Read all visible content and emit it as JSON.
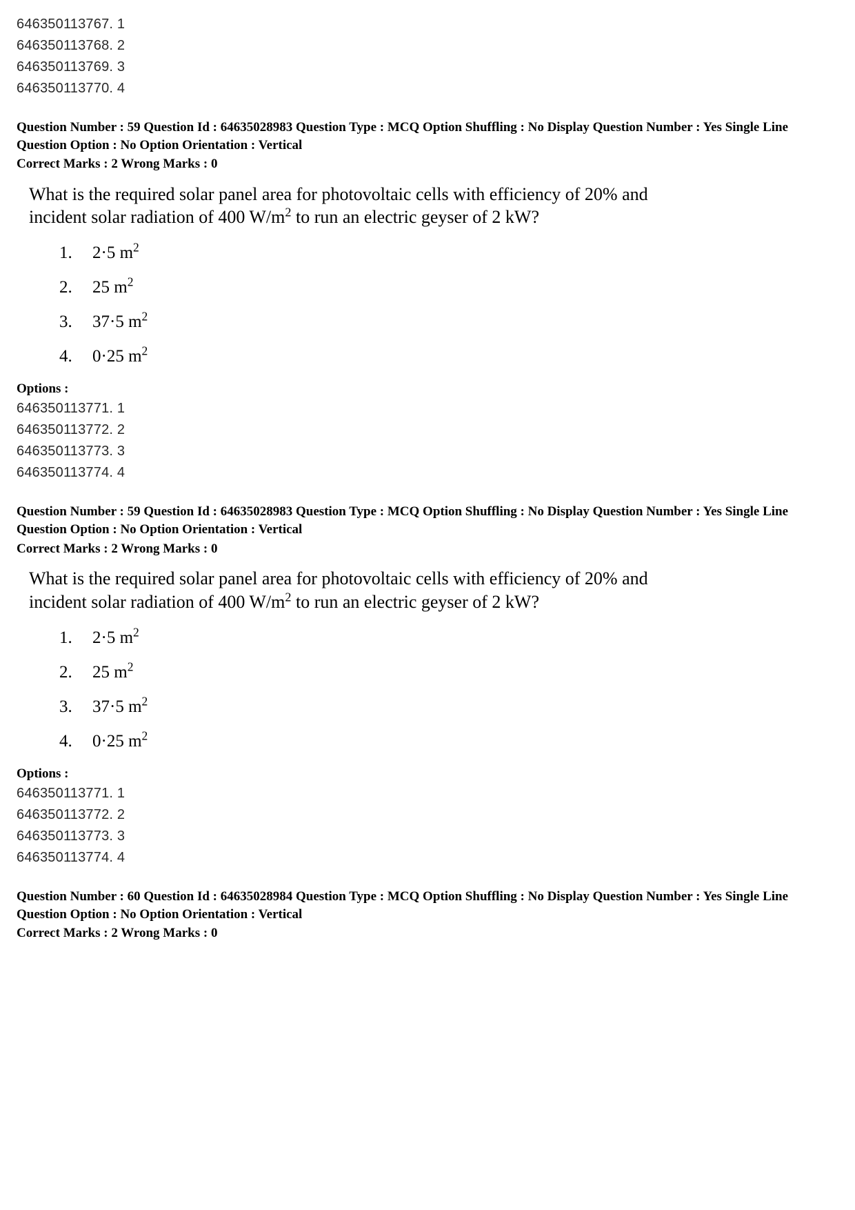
{
  "top_option_ids": [
    "646350113767. 1",
    "646350113768. 2",
    "646350113769. 3",
    "646350113770. 4"
  ],
  "questions": [
    {
      "header": "Question Number : 59  Question Id : 64635028983  Question Type : MCQ  Option Shuffling : No  Display Question Number : Yes  Single Line Question Option : No  Option Orientation : Vertical",
      "marks": "Correct Marks : 2  Wrong Marks : 0",
      "body_html": "What is the required solar panel area for photovoltaic cells with efficiency of 20% and incident solar radiation of 400 W/m<sup>2</sup> to run an electric geyser of 2 kW?",
      "choices": [
        {
          "num": "1.",
          "html": "2·5 m<sup>2</sup>"
        },
        {
          "num": "2.",
          "html": "25 m<sup>2</sup>"
        },
        {
          "num": "3.",
          "html": "37·5 m<sup>2</sup>"
        },
        {
          "num": "4.",
          "html": "0·25 m<sup>2</sup>"
        }
      ],
      "options_label": "Options :",
      "option_ids": [
        "646350113771. 1",
        "646350113772. 2",
        "646350113773. 3",
        "646350113774. 4"
      ]
    },
    {
      "header": "Question Number : 59  Question Id : 64635028983  Question Type : MCQ  Option Shuffling : No  Display Question Number : Yes  Single Line Question Option : No  Option Orientation : Vertical",
      "marks": "Correct Marks : 2  Wrong Marks : 0",
      "body_html": "What is the required solar panel area for photovoltaic cells with efficiency of 20% and incident solar radiation of 400 W/m<sup>2</sup> to run an electric geyser of 2 kW?",
      "choices": [
        {
          "num": "1.",
          "html": "2·5 m<sup>2</sup>"
        },
        {
          "num": "2.",
          "html": "25 m<sup>2</sup>"
        },
        {
          "num": "3.",
          "html": "37·5 m<sup>2</sup>"
        },
        {
          "num": "4.",
          "html": "0·25 m<sup>2</sup>"
        }
      ],
      "options_label": "Options :",
      "option_ids": [
        "646350113771. 1",
        "646350113772. 2",
        "646350113773. 3",
        "646350113774. 4"
      ]
    },
    {
      "header": "Question Number : 60  Question Id : 64635028984  Question Type : MCQ  Option Shuffling : No  Display Question Number : Yes  Single Line Question Option : No  Option Orientation : Vertical",
      "marks": "Correct Marks : 2  Wrong Marks : 0"
    }
  ]
}
